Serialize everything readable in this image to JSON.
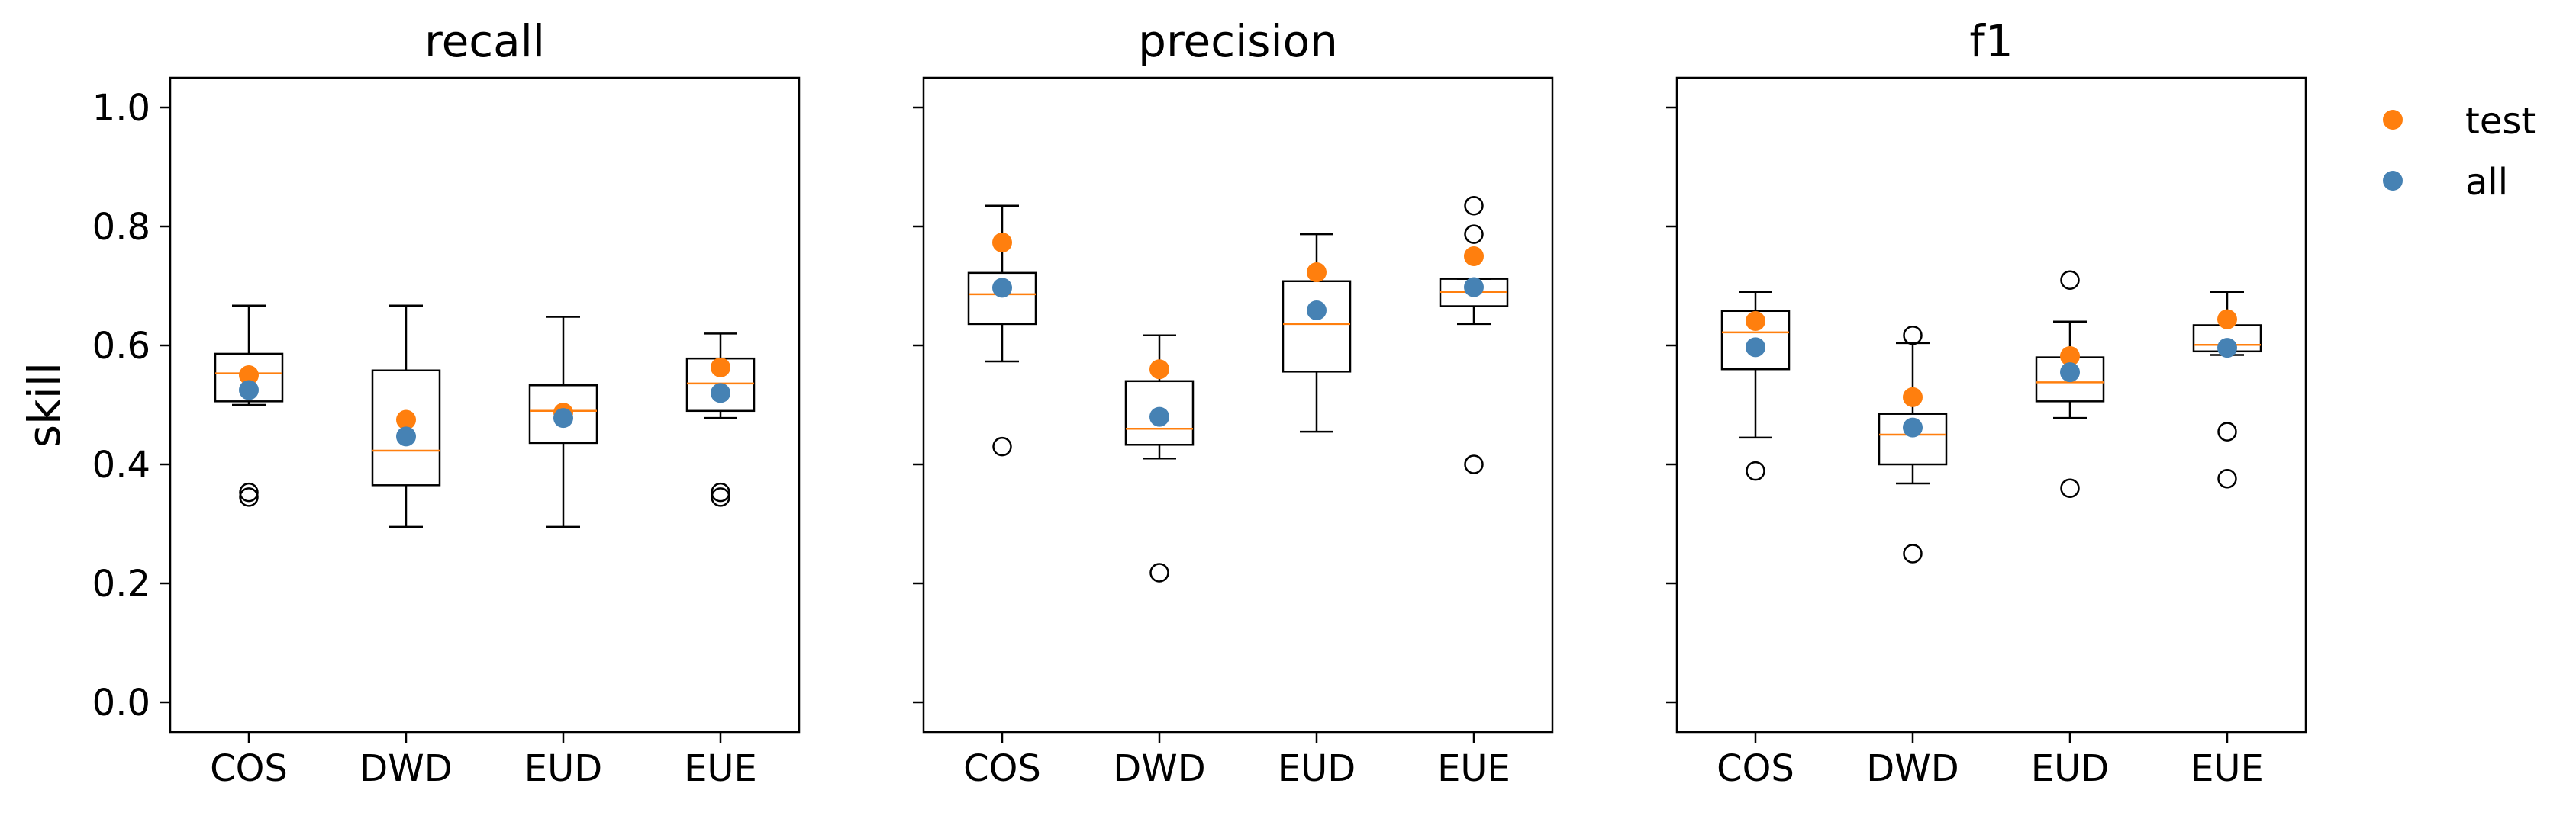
{
  "chart_data": {
    "type": "box",
    "ylabel": "skill",
    "ylim": [
      -0.05,
      1.05
    ],
    "yticks": [
      "0.0",
      "0.2",
      "0.4",
      "0.6",
      "0.8",
      "1.0"
    ],
    "yticks_values": [
      0.0,
      0.2,
      0.4,
      0.6,
      0.8,
      1.0
    ],
    "categories": [
      "COS",
      "DWD",
      "EUD",
      "EUE"
    ],
    "legend": {
      "position": "outside-right",
      "entries": [
        {
          "label": "test",
          "color": "#ff7f0e"
        },
        {
          "label": "all",
          "color": "#4682b4"
        }
      ]
    },
    "colors": {
      "median": "#ff7f0e",
      "test": "#ff7f0e",
      "all": "#4682b4",
      "box": "#000000"
    },
    "panels": [
      {
        "title": "recall",
        "boxes": [
          {
            "category": "COS",
            "whisker_low": 0.5,
            "q1": 0.506,
            "median": 0.553,
            "q3": 0.586,
            "whisker_high": 0.667,
            "outliers": [
              0.345,
              0.353
            ],
            "test": 0.55,
            "all": 0.525
          },
          {
            "category": "DWD",
            "whisker_low": 0.295,
            "q1": 0.365,
            "median": 0.423,
            "q3": 0.558,
            "whisker_high": 0.667,
            "outliers": [],
            "test": 0.475,
            "all": 0.447
          },
          {
            "category": "EUD",
            "whisker_low": 0.295,
            "q1": 0.436,
            "median": 0.49,
            "q3": 0.533,
            "whisker_high": 0.648,
            "outliers": [],
            "test": 0.487,
            "all": 0.478
          },
          {
            "category": "EUE",
            "whisker_low": 0.478,
            "q1": 0.49,
            "median": 0.536,
            "q3": 0.578,
            "whisker_high": 0.62,
            "outliers": [
              0.345,
              0.353
            ],
            "test": 0.563,
            "all": 0.52
          }
        ]
      },
      {
        "title": "precision",
        "boxes": [
          {
            "category": "COS",
            "whisker_low": 0.573,
            "q1": 0.636,
            "median": 0.686,
            "q3": 0.722,
            "whisker_high": 0.835,
            "outliers": [
              0.43
            ],
            "test": 0.773,
            "all": 0.697
          },
          {
            "category": "DWD",
            "whisker_low": 0.41,
            "q1": 0.433,
            "median": 0.46,
            "q3": 0.54,
            "whisker_high": 0.617,
            "outliers": [
              0.218
            ],
            "test": 0.56,
            "all": 0.48
          },
          {
            "category": "EUD",
            "whisker_low": 0.455,
            "q1": 0.556,
            "median": 0.636,
            "q3": 0.708,
            "whisker_high": 0.787,
            "outliers": [],
            "test": 0.723,
            "all": 0.659
          },
          {
            "category": "EUE",
            "whisker_low": 0.636,
            "q1": 0.666,
            "median": 0.69,
            "q3": 0.712,
            "whisker_high": 0.712,
            "outliers": [
              0.835,
              0.787,
              0.4
            ],
            "test": 0.75,
            "all": 0.698
          }
        ]
      },
      {
        "title": "f1",
        "boxes": [
          {
            "category": "COS",
            "whisker_low": 0.445,
            "q1": 0.56,
            "median": 0.622,
            "q3": 0.658,
            "whisker_high": 0.69,
            "outliers": [
              0.389
            ],
            "test": 0.641,
            "all": 0.597
          },
          {
            "category": "DWD",
            "whisker_low": 0.368,
            "q1": 0.4,
            "median": 0.45,
            "q3": 0.485,
            "whisker_high": 0.604,
            "outliers": [
              0.617,
              0.25
            ],
            "test": 0.513,
            "all": 0.462
          },
          {
            "category": "EUD",
            "whisker_low": 0.478,
            "q1": 0.506,
            "median": 0.538,
            "q3": 0.58,
            "whisker_high": 0.64,
            "outliers": [
              0.71,
              0.36
            ],
            "test": 0.582,
            "all": 0.555
          },
          {
            "category": "EUE",
            "whisker_low": 0.584,
            "q1": 0.59,
            "median": 0.601,
            "q3": 0.634,
            "whisker_high": 0.69,
            "outliers": [
              0.455,
              0.376
            ],
            "test": 0.644,
            "all": 0.596
          }
        ]
      }
    ]
  }
}
